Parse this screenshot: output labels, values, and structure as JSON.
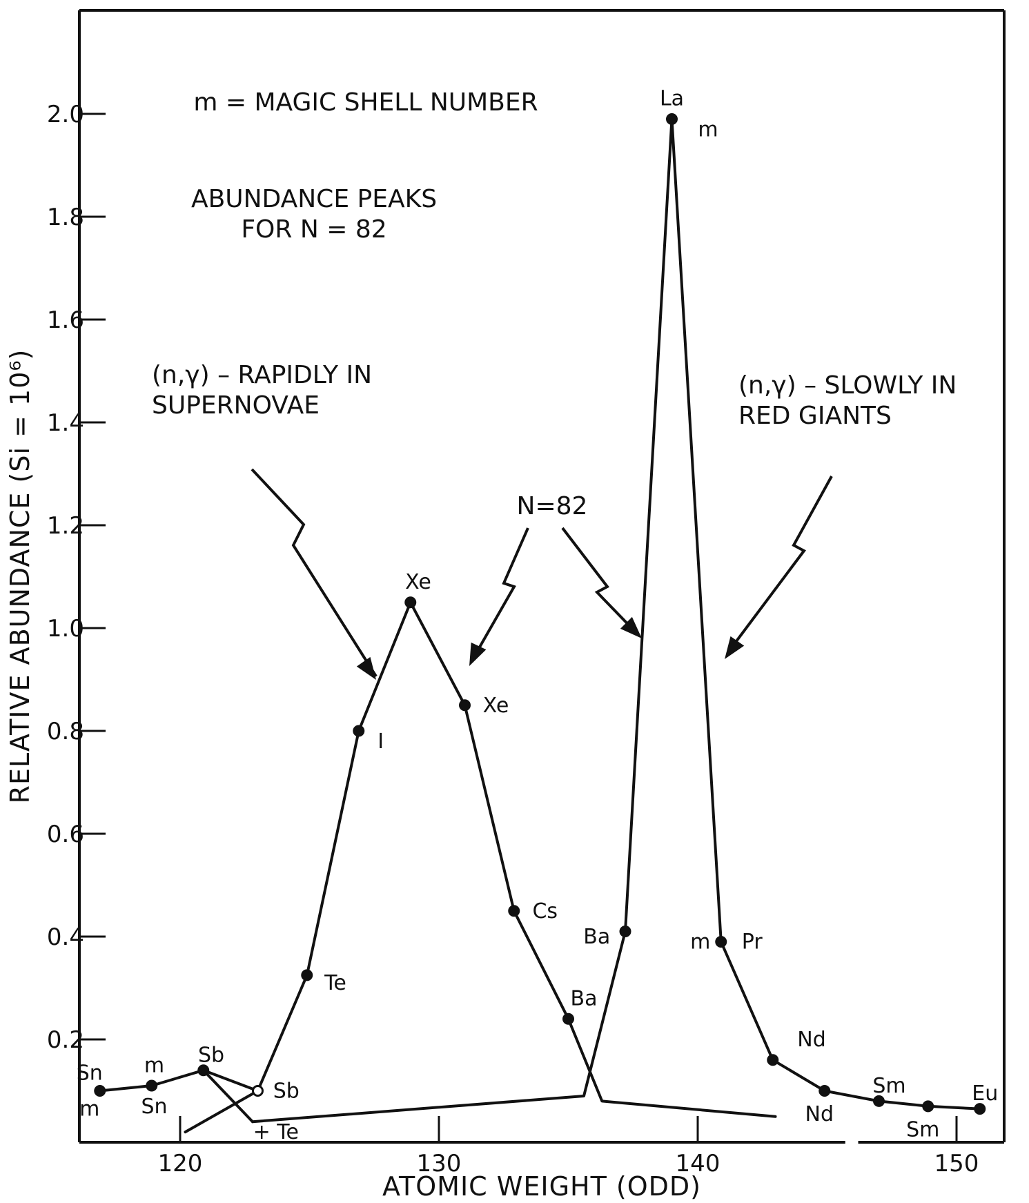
{
  "chart_data": {
    "type": "line",
    "title": "",
    "xlabel": "ATOMIC WEIGHT (ODD)",
    "ylabel": "RELATIVE ABUNDANCE (Si = 10⁶)",
    "xlim": [
      116,
      152
    ],
    "ylim": [
      0,
      2.2
    ],
    "x_ticks": [
      120,
      130,
      140,
      150
    ],
    "y_ticks": [
      0.2,
      0.4,
      0.6,
      0.8,
      1.0,
      1.2,
      1.4,
      1.6,
      1.8,
      2.0
    ],
    "grid": false,
    "series": [
      {
        "values": [
          {
            "x": 116.9,
            "y": 0.1
          },
          {
            "x": 118.9,
            "y": 0.11
          },
          {
            "x": 120.9,
            "y": 0.14
          },
          {
            "x": 123.0,
            "y": 0.1
          },
          {
            "x": 124.9,
            "y": 0.325
          },
          {
            "x": 126.9,
            "y": 0.8
          },
          {
            "x": 128.9,
            "y": 1.05
          },
          {
            "x": 131.0,
            "y": 0.85
          },
          {
            "x": 132.9,
            "y": 0.45
          },
          {
            "x": 135.0,
            "y": 0.24
          },
          {
            "x": 136.3,
            "y": 0.08
          },
          {
            "x": 143.0,
            "y": 0.05
          }
        ]
      },
      {
        "values": [
          {
            "x": 120.2,
            "y": 0.02
          },
          {
            "x": 123.0,
            "y": 0.1
          }
        ]
      },
      {
        "values": [
          {
            "x": 120.9,
            "y": 0.14
          },
          {
            "x": 122.8,
            "y": 0.04
          }
        ]
      },
      {
        "values": [
          {
            "x": 122.8,
            "y": 0.04
          },
          {
            "x": 135.6,
            "y": 0.09
          },
          {
            "x": 137.2,
            "y": 0.41
          },
          {
            "x": 139.0,
            "y": 1.99
          },
          {
            "x": 140.9,
            "y": 0.39
          },
          {
            "x": 142.9,
            "y": 0.16
          },
          {
            "x": 144.9,
            "y": 0.1
          },
          {
            "x": 147.0,
            "y": 0.08
          },
          {
            "x": 148.9,
            "y": 0.07
          },
          {
            "x": 150.9,
            "y": 0.065
          }
        ]
      }
    ],
    "point_labels": [
      {
        "x": 116.9,
        "y": 0.1,
        "text": "Sn",
        "dx": -0.4,
        "dy": 0.035
      },
      {
        "x": 116.9,
        "y": 0.1,
        "text": "m",
        "dx": -0.4,
        "dy": -0.035
      },
      {
        "x": 118.9,
        "y": 0.11,
        "text": "m",
        "dx": 0.1,
        "dy": 0.04
      },
      {
        "x": 118.9,
        "y": 0.11,
        "text": "Sn",
        "dx": 0.1,
        "dy": -0.04
      },
      {
        "x": 120.9,
        "y": 0.14,
        "text": "Sb",
        "dx": 0.3,
        "dy": 0.03
      },
      {
        "x": 123.0,
        "y": 0.1,
        "text": "Sb",
        "dx": 1.1,
        "dy": 0.0
      },
      {
        "x": 122.8,
        "y": 0.04,
        "text": "+ Te",
        "dx": 0.9,
        "dy": -0.02
      },
      {
        "x": 124.9,
        "y": 0.325,
        "text": "Te",
        "dx": 1.1,
        "dy": -0.015
      },
      {
        "x": 126.9,
        "y": 0.8,
        "text": "I",
        "dx": 0.85,
        "dy": -0.02
      },
      {
        "x": 128.9,
        "y": 1.05,
        "text": "Xe",
        "dx": 0.3,
        "dy": 0.04
      },
      {
        "x": 131.0,
        "y": 0.85,
        "text": "Xe",
        "dx": 1.2,
        "dy": 0.0
      },
      {
        "x": 132.9,
        "y": 0.45,
        "text": "Cs",
        "dx": 1.2,
        "dy": 0.0
      },
      {
        "x": 135.0,
        "y": 0.24,
        "text": "Ba",
        "dx": 0.6,
        "dy": 0.04
      },
      {
        "x": 137.2,
        "y": 0.41,
        "text": "Ba",
        "dx": -1.1,
        "dy": -0.01
      },
      {
        "x": 139.0,
        "y": 1.99,
        "text": "La",
        "dx": 0.0,
        "dy": 0.04
      },
      {
        "x": 139.0,
        "y": 1.99,
        "text": "m",
        "dx": 1.4,
        "dy": -0.02
      },
      {
        "x": 140.9,
        "y": 0.39,
        "text": "m",
        "dx": -0.8,
        "dy": 0.0
      },
      {
        "x": 140.9,
        "y": 0.39,
        "text": "Pr",
        "dx": 1.2,
        "dy": 0.0
      },
      {
        "x": 142.9,
        "y": 0.16,
        "text": "Nd",
        "dx": 1.5,
        "dy": 0.04
      },
      {
        "x": 144.9,
        "y": 0.1,
        "text": "Nd",
        "dx": -0.2,
        "dy": -0.045
      },
      {
        "x": 147.0,
        "y": 0.08,
        "text": "Sm",
        "dx": 0.4,
        "dy": 0.03
      },
      {
        "x": 148.9,
        "y": 0.07,
        "text": "Sm",
        "dx": -0.2,
        "dy": -0.045
      },
      {
        "x": 150.9,
        "y": 0.065,
        "text": "Eu",
        "dx": 0.2,
        "dy": 0.03
      }
    ],
    "annotations": [
      {
        "lines": [
          "m = MAGIC SHELL NUMBER"
        ]
      },
      {
        "lines": [
          "ABUNDANCE PEAKS",
          "FOR N = 82"
        ]
      },
      {
        "lines": [
          "(n,γ) – RAPIDLY IN",
          "SUPERNOVAE"
        ]
      },
      {
        "lines": [
          "(n,γ) – SLOWLY IN",
          "RED GIANTS"
        ]
      },
      {
        "lines": [
          "N=82"
        ]
      }
    ]
  }
}
